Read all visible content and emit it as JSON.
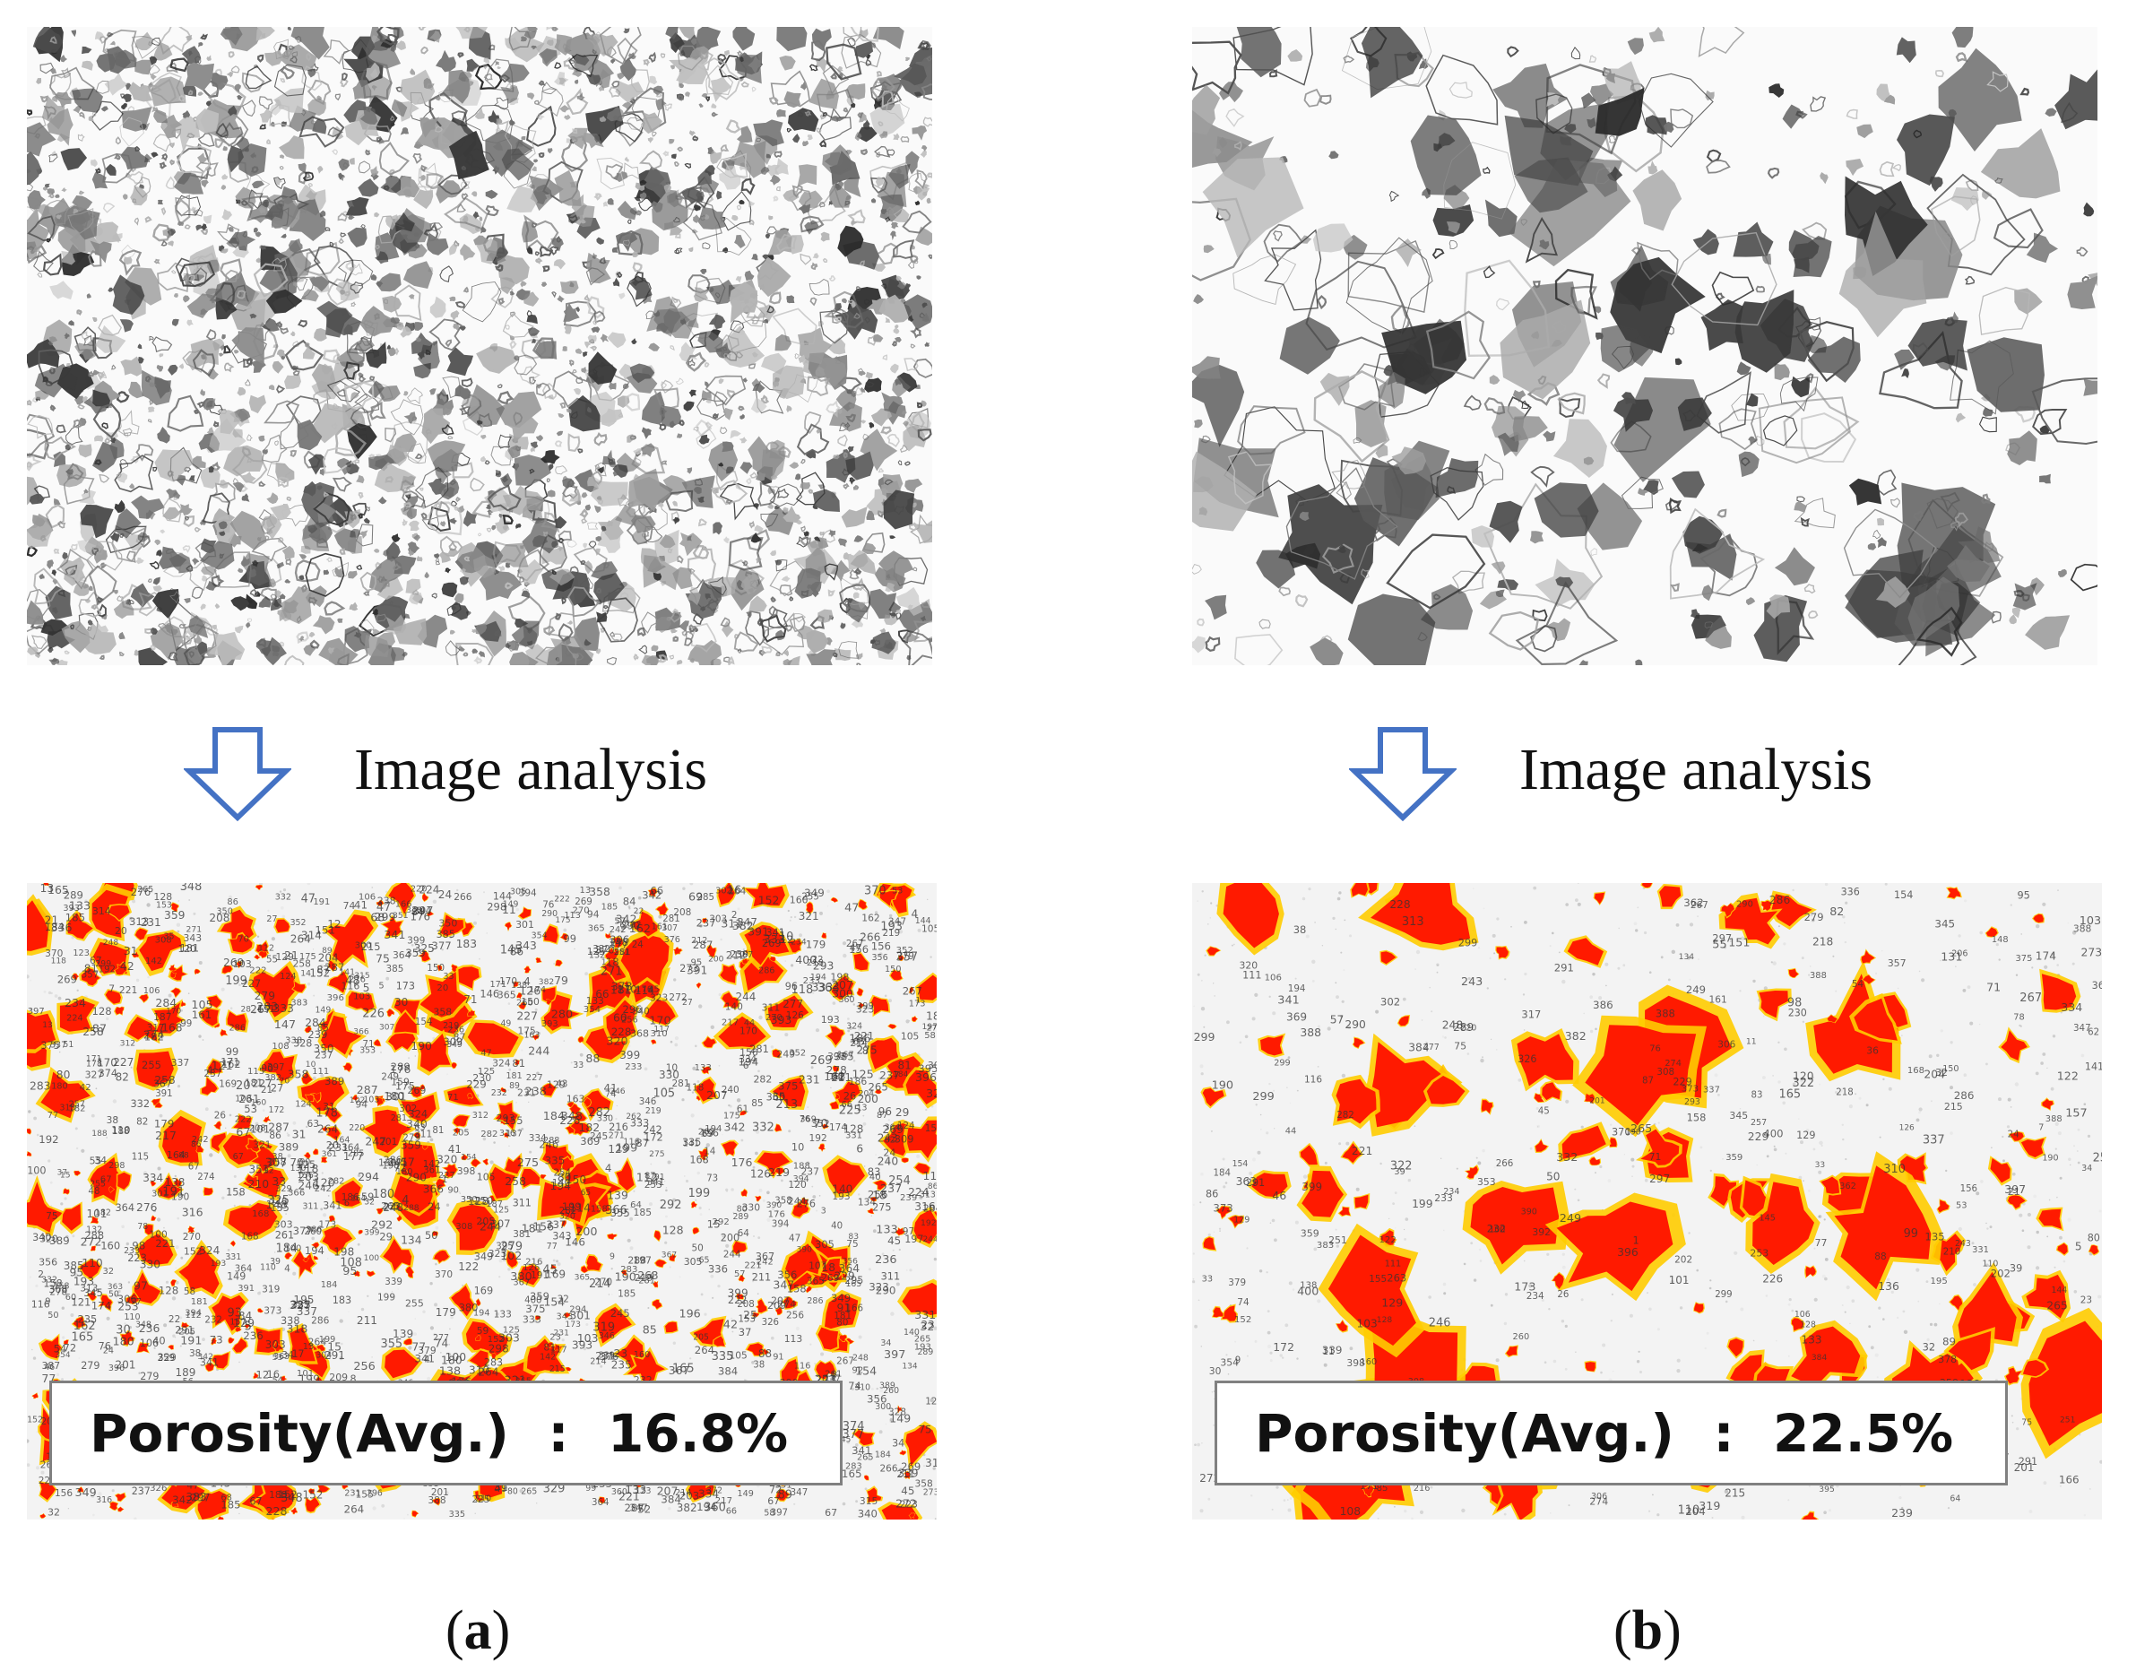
{
  "colors": {
    "arrow_outline": "#4472c4",
    "pore_fill": "#ff1a00",
    "pore_rim": "#ffcc00",
    "pore_dark": "#2b2b2b"
  },
  "panels": [
    {
      "id": "a",
      "step_label": "Image analysis",
      "porosity_label": "Porosity(Avg.)",
      "porosity_separator": ":",
      "porosity_value": "16.8%",
      "caption_open": "(",
      "caption_letter": "a",
      "caption_close": ")"
    },
    {
      "id": "b",
      "step_label": "Image analysis",
      "porosity_label": "Porosity(Avg.)",
      "porosity_separator": ":",
      "porosity_value": "22.5%",
      "caption_open": "(",
      "caption_letter": "b",
      "caption_close": ")"
    }
  ]
}
